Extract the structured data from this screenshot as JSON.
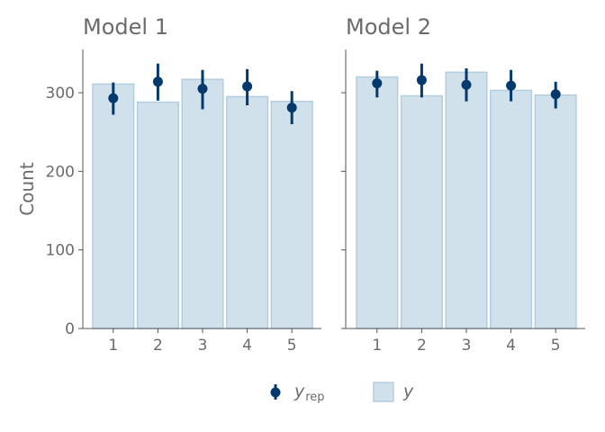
{
  "chart_data": {
    "type": "bar",
    "ylabel": "Count",
    "ylim": [
      0,
      355
    ],
    "yticks": [
      0,
      100,
      200,
      300
    ],
    "categories": [
      "1",
      "2",
      "3",
      "4",
      "5"
    ],
    "colors": {
      "bar_fill": "#d1e1ec",
      "bar_stroke": "#b3cde0",
      "point": "#03396c",
      "axis": "#555555",
      "text": "#6b6b6b"
    },
    "panels": [
      {
        "title": "Model 1",
        "y": [
          311,
          288,
          317,
          295,
          289
        ],
        "yrep": {
          "median": [
            293,
            314,
            305,
            308,
            281
          ],
          "low": [
            272,
            290,
            279,
            284,
            260
          ],
          "high": [
            313,
            337,
            329,
            330,
            302
          ]
        }
      },
      {
        "title": "Model 2",
        "y": [
          320,
          296,
          326,
          303,
          297
        ],
        "yrep": {
          "median": [
            312,
            316,
            310,
            309,
            298
          ],
          "low": [
            294,
            294,
            289,
            289,
            280
          ],
          "high": [
            328,
            337,
            331,
            329,
            314
          ]
        }
      }
    ],
    "legend": {
      "position": "bottom",
      "items": [
        {
          "symbol": "pointrange",
          "label": "y",
          "subscript": "rep"
        },
        {
          "symbol": "box",
          "label": "y"
        }
      ]
    }
  }
}
